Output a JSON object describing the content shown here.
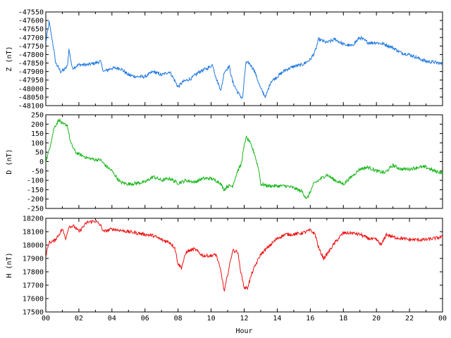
{
  "chart_data": [
    {
      "type": "line",
      "ylabel": "Z (nT)",
      "ylim": [
        -48100,
        -47550
      ],
      "yticks": [
        "-47550",
        "-47600",
        "-47650",
        "-47700",
        "-47750",
        "-47800",
        "-47850",
        "-47900",
        "-47950",
        "-48000",
        "-48050",
        "-48100"
      ],
      "xlim": [
        0,
        24
      ],
      "grid": false,
      "color": "#1f78e0",
      "points": [
        [
          0.0,
          -47730
        ],
        [
          0.2,
          -47610
        ],
        [
          0.4,
          -47720
        ],
        [
          0.6,
          -47850
        ],
        [
          0.9,
          -47900
        ],
        [
          1.1,
          -47890
        ],
        [
          1.3,
          -47870
        ],
        [
          1.4,
          -47770
        ],
        [
          1.6,
          -47880
        ],
        [
          2.0,
          -47860
        ],
        [
          2.5,
          -47860
        ],
        [
          3.0,
          -47850
        ],
        [
          3.3,
          -47840
        ],
        [
          3.5,
          -47900
        ],
        [
          4.0,
          -47880
        ],
        [
          4.5,
          -47880
        ],
        [
          5.0,
          -47920
        ],
        [
          5.5,
          -47930
        ],
        [
          6.0,
          -47930
        ],
        [
          6.5,
          -47900
        ],
        [
          7.0,
          -47920
        ],
        [
          7.5,
          -47900
        ],
        [
          8.0,
          -47990
        ],
        [
          8.3,
          -47960
        ],
        [
          8.8,
          -47940
        ],
        [
          9.3,
          -47900
        ],
        [
          9.8,
          -47880
        ],
        [
          10.1,
          -47860
        ],
        [
          10.3,
          -47940
        ],
        [
          10.6,
          -48010
        ],
        [
          10.8,
          -47900
        ],
        [
          11.1,
          -47870
        ],
        [
          11.3,
          -47960
        ],
        [
          11.6,
          -48020
        ],
        [
          11.9,
          -48060
        ],
        [
          12.1,
          -47850
        ],
        [
          12.3,
          -47850
        ],
        [
          12.6,
          -47890
        ],
        [
          13.0,
          -48000
        ],
        [
          13.3,
          -48050
        ],
        [
          13.6,
          -47960
        ],
        [
          14.0,
          -47930
        ],
        [
          14.5,
          -47890
        ],
        [
          15.0,
          -47870
        ],
        [
          15.5,
          -47860
        ],
        [
          16.0,
          -47830
        ],
        [
          16.3,
          -47780
        ],
        [
          16.5,
          -47710
        ],
        [
          17.0,
          -47730
        ],
        [
          17.5,
          -47710
        ],
        [
          18.0,
          -47740
        ],
        [
          18.5,
          -47750
        ],
        [
          19.0,
          -47700
        ],
        [
          19.5,
          -47730
        ],
        [
          20.0,
          -47730
        ],
        [
          20.5,
          -47740
        ],
        [
          21.0,
          -47760
        ],
        [
          21.5,
          -47790
        ],
        [
          22.0,
          -47800
        ],
        [
          22.5,
          -47820
        ],
        [
          23.0,
          -47840
        ],
        [
          23.5,
          -47845
        ],
        [
          24.0,
          -47855
        ]
      ]
    },
    {
      "type": "line",
      "ylabel": "D (nT)",
      "ylim": [
        -250,
        250
      ],
      "yticks": [
        "250",
        "200",
        "150",
        "100",
        "50",
        "0",
        "-50",
        "-100",
        "-150",
        "-200",
        "-250"
      ],
      "xlim": [
        0,
        24
      ],
      "grid": false,
      "color": "#19b719",
      "points": [
        [
          0.0,
          0
        ],
        [
          0.2,
          60
        ],
        [
          0.5,
          180
        ],
        [
          0.8,
          225
        ],
        [
          1.0,
          200
        ],
        [
          1.3,
          195
        ],
        [
          1.5,
          100
        ],
        [
          1.8,
          50
        ],
        [
          2.0,
          40
        ],
        [
          2.5,
          20
        ],
        [
          3.0,
          10
        ],
        [
          3.3,
          10
        ],
        [
          3.6,
          -20
        ],
        [
          4.0,
          -50
        ],
        [
          4.5,
          -110
        ],
        [
          5.0,
          -120
        ],
        [
          5.5,
          -115
        ],
        [
          6.0,
          -110
        ],
        [
          6.5,
          -80
        ],
        [
          7.0,
          -100
        ],
        [
          7.5,
          -90
        ],
        [
          8.0,
          -115
        ],
        [
          8.5,
          -100
        ],
        [
          9.0,
          -110
        ],
        [
          9.5,
          -90
        ],
        [
          10.0,
          -90
        ],
        [
          10.5,
          -110
        ],
        [
          10.8,
          -150
        ],
        [
          11.0,
          -130
        ],
        [
          11.3,
          -130
        ],
        [
          11.6,
          -50
        ],
        [
          11.8,
          -20
        ],
        [
          12.1,
          130
        ],
        [
          12.3,
          110
        ],
        [
          12.6,
          50
        ],
        [
          12.9,
          -50
        ],
        [
          13.0,
          -120
        ],
        [
          13.5,
          -130
        ],
        [
          14.0,
          -130
        ],
        [
          14.5,
          -130
        ],
        [
          15.0,
          -140
        ],
        [
          15.5,
          -160
        ],
        [
          15.8,
          -200
        ],
        [
          16.2,
          -120
        ],
        [
          16.5,
          -100
        ],
        [
          17.0,
          -70
        ],
        [
          17.5,
          -100
        ],
        [
          18.0,
          -120
        ],
        [
          18.5,
          -80
        ],
        [
          19.0,
          -40
        ],
        [
          19.5,
          -30
        ],
        [
          20.0,
          -50
        ],
        [
          20.5,
          -60
        ],
        [
          21.0,
          -20
        ],
        [
          21.5,
          -40
        ],
        [
          22.0,
          -40
        ],
        [
          22.5,
          -30
        ],
        [
          23.0,
          -30
        ],
        [
          23.5,
          -50
        ],
        [
          24.0,
          -60
        ]
      ]
    },
    {
      "type": "line",
      "ylabel": "H (nT)",
      "xlabel": "Hour",
      "ylim": [
        17500,
        18200
      ],
      "yticks": [
        "18200",
        "18100",
        "18000",
        "17900",
        "17800",
        "17700",
        "17600",
        "17500"
      ],
      "xlim": [
        0,
        24
      ],
      "xticks": [
        "00",
        "02",
        "04",
        "06",
        "08",
        "10",
        "12",
        "14",
        "16",
        "18",
        "20",
        "22",
        "00"
      ],
      "grid": false,
      "color": "#ee1111",
      "points": [
        [
          0.0,
          17920
        ],
        [
          0.2,
          18020
        ],
        [
          0.5,
          18030
        ],
        [
          0.8,
          18080
        ],
        [
          1.0,
          18120
        ],
        [
          1.2,
          18050
        ],
        [
          1.4,
          18140
        ],
        [
          1.7,
          18140
        ],
        [
          2.0,
          18100
        ],
        [
          2.5,
          18170
        ],
        [
          3.0,
          18180
        ],
        [
          3.3,
          18150
        ],
        [
          3.5,
          18100
        ],
        [
          4.0,
          18120
        ],
        [
          4.5,
          18110
        ],
        [
          5.0,
          18100
        ],
        [
          5.5,
          18090
        ],
        [
          6.0,
          18080
        ],
        [
          6.5,
          18070
        ],
        [
          7.0,
          18040
        ],
        [
          7.5,
          18020
        ],
        [
          7.8,
          17980
        ],
        [
          8.0,
          17860
        ],
        [
          8.2,
          17830
        ],
        [
          8.5,
          17950
        ],
        [
          9.0,
          17970
        ],
        [
          9.5,
          17920
        ],
        [
          10.0,
          17920
        ],
        [
          10.3,
          17930
        ],
        [
          10.6,
          17800
        ],
        [
          10.8,
          17650
        ],
        [
          11.0,
          17780
        ],
        [
          11.3,
          17960
        ],
        [
          11.6,
          17950
        ],
        [
          11.8,
          17800
        ],
        [
          12.0,
          17680
        ],
        [
          12.2,
          17680
        ],
        [
          12.5,
          17800
        ],
        [
          12.8,
          17880
        ],
        [
          13.0,
          17930
        ],
        [
          13.5,
          17990
        ],
        [
          14.0,
          18050
        ],
        [
          14.5,
          18080
        ],
        [
          15.0,
          18080
        ],
        [
          15.5,
          18090
        ],
        [
          16.0,
          18110
        ],
        [
          16.3,
          18080
        ],
        [
          16.5,
          17980
        ],
        [
          16.8,
          17900
        ],
        [
          17.0,
          17930
        ],
        [
          17.5,
          18020
        ],
        [
          18.0,
          18090
        ],
        [
          18.5,
          18090
        ],
        [
          19.0,
          18080
        ],
        [
          19.5,
          18050
        ],
        [
          20.0,
          18040
        ],
        [
          20.3,
          18000
        ],
        [
          20.6,
          18080
        ],
        [
          21.0,
          18060
        ],
        [
          21.5,
          18050
        ],
        [
          22.0,
          18040
        ],
        [
          22.5,
          18040
        ],
        [
          23.0,
          18040
        ],
        [
          23.5,
          18050
        ],
        [
          24.0,
          18060
        ]
      ]
    }
  ]
}
